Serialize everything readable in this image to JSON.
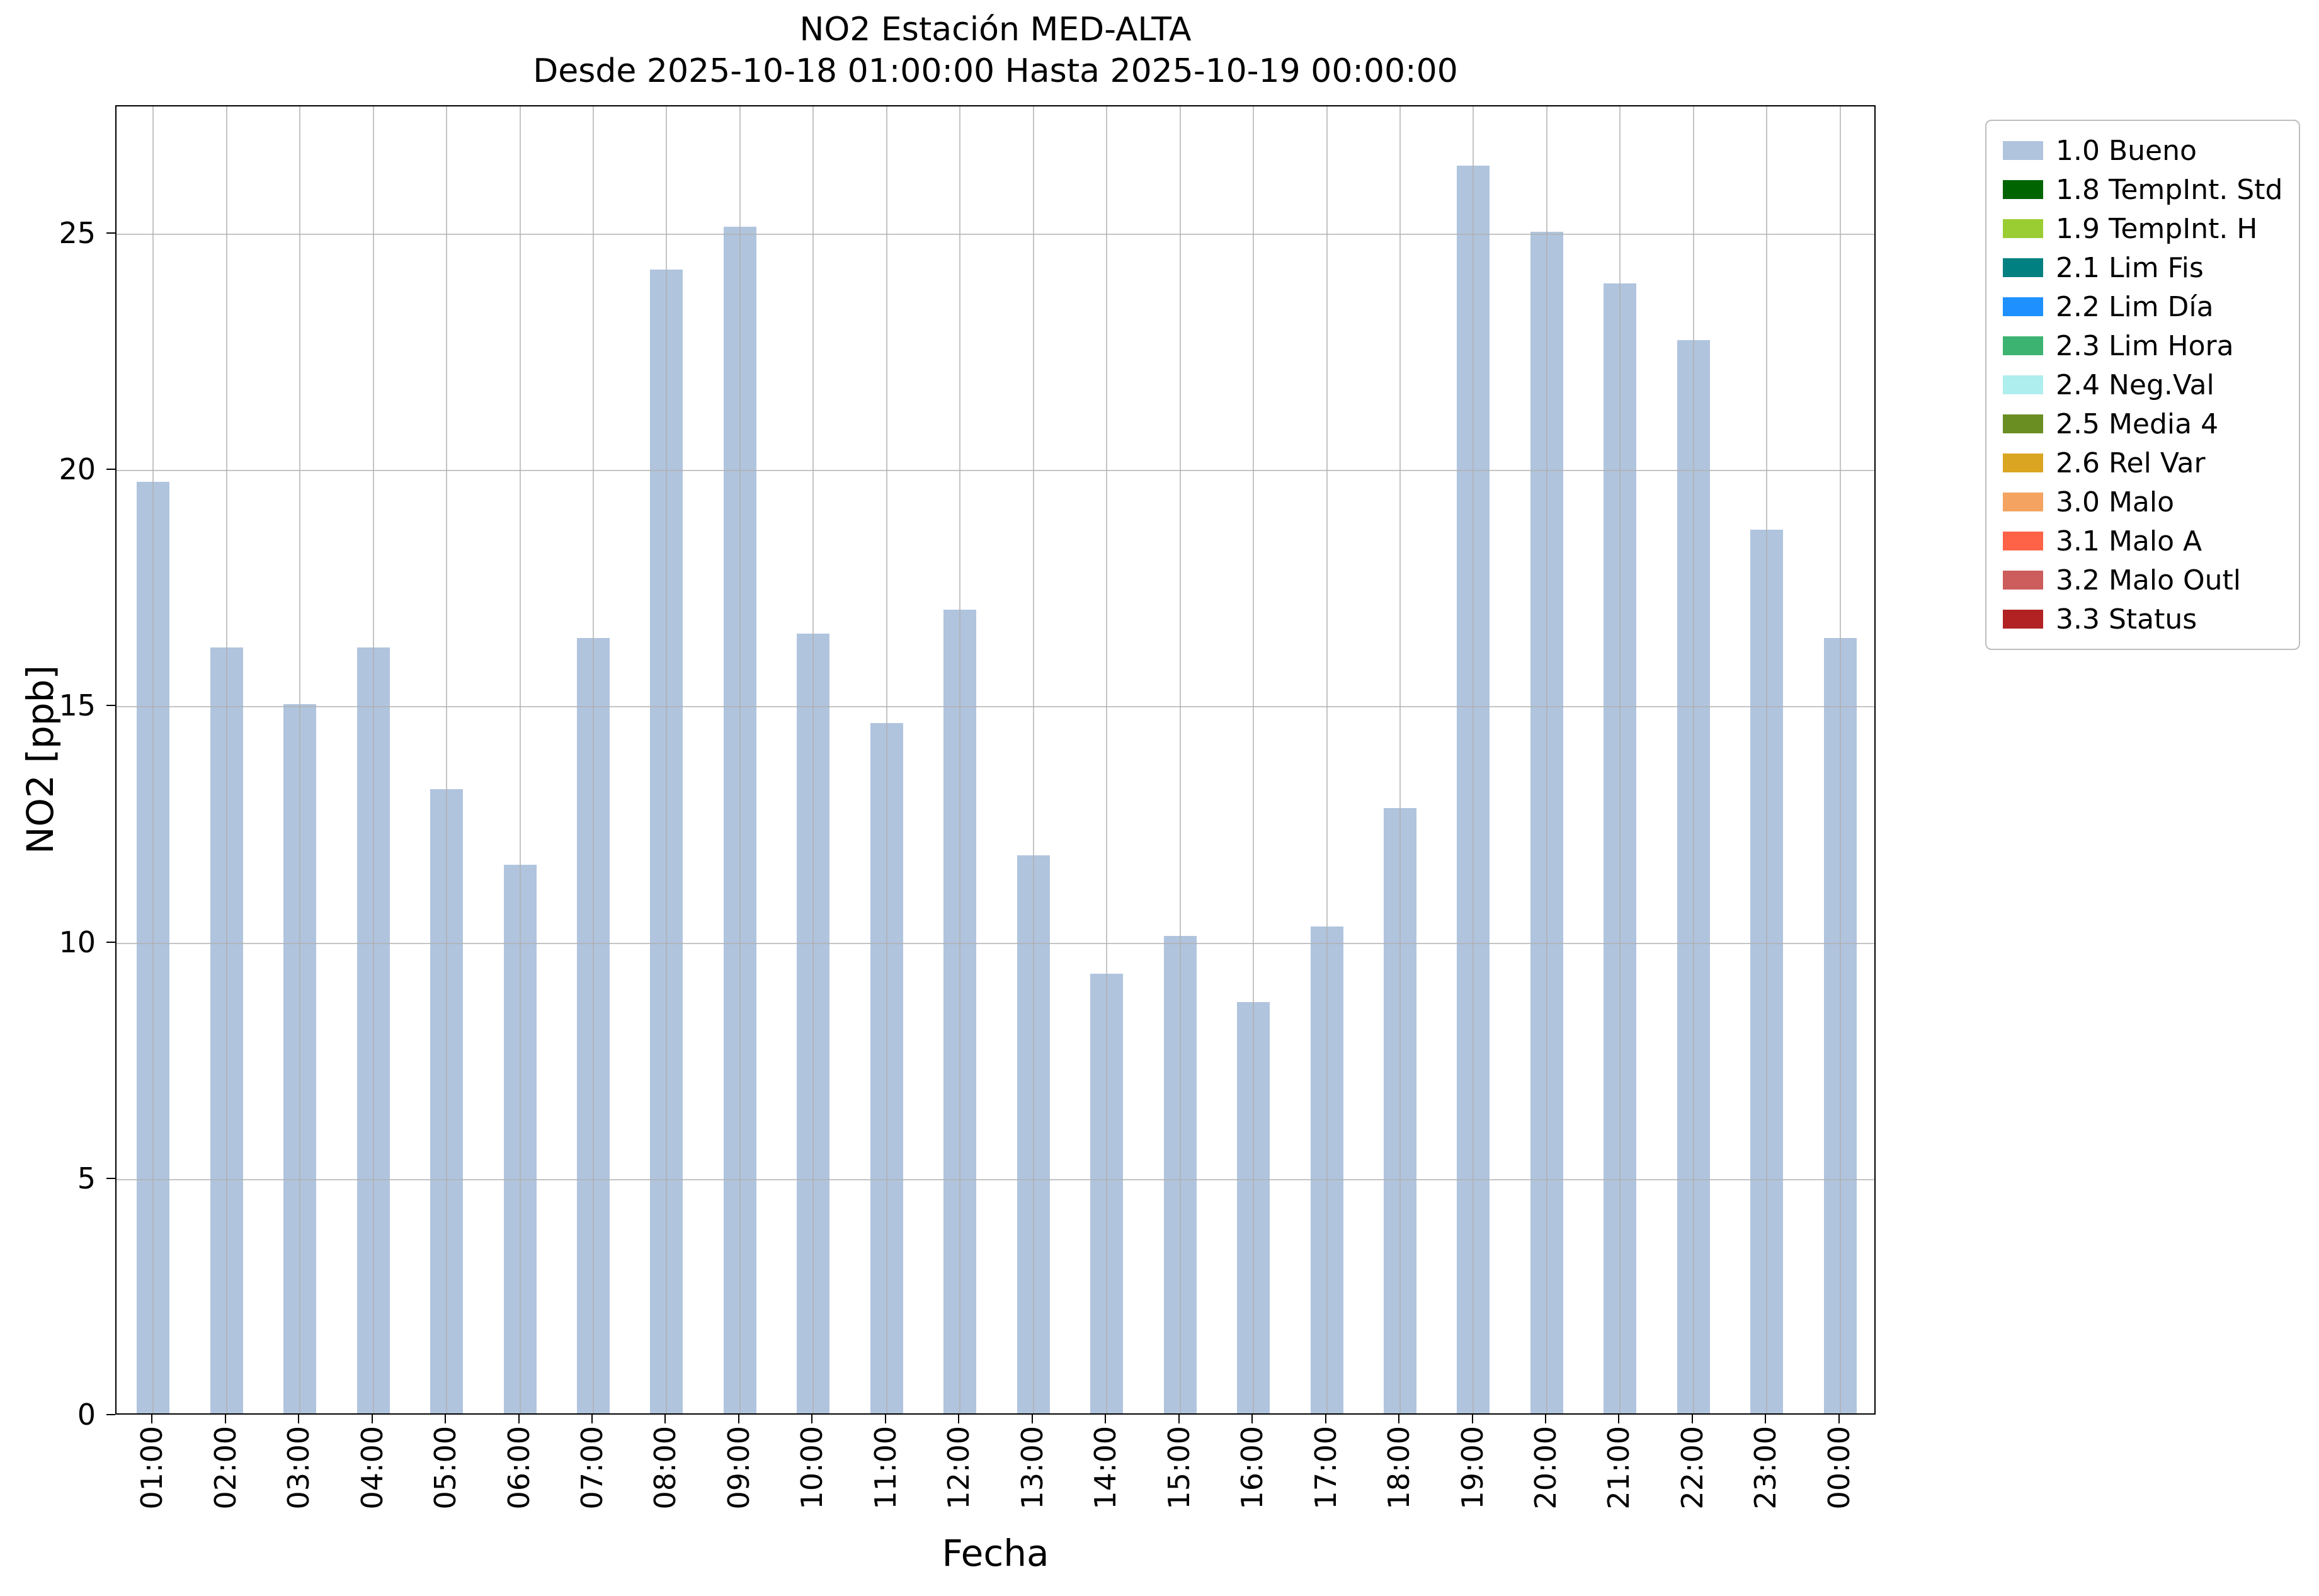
{
  "chart_data": {
    "type": "bar",
    "title": "NO2 Estación MED-ALTA",
    "subtitle": "Desde 2025-10-18 01:00:00 Hasta 2025-10-19 00:00:00",
    "xlabel": "Fecha",
    "ylabel": "NO2 [ppb]",
    "categories": [
      "01:00",
      "02:00",
      "03:00",
      "04:00",
      "05:00",
      "06:00",
      "07:00",
      "08:00",
      "09:00",
      "10:00",
      "11:00",
      "12:00",
      "13:00",
      "14:00",
      "15:00",
      "16:00",
      "17:00",
      "18:00",
      "19:00",
      "20:00",
      "21:00",
      "22:00",
      "23:00",
      "00:00"
    ],
    "values": [
      19.7,
      16.2,
      15.0,
      16.2,
      13.2,
      11.6,
      16.4,
      24.2,
      25.1,
      16.5,
      14.6,
      17.0,
      11.8,
      9.3,
      10.1,
      8.7,
      10.3,
      12.8,
      26.4,
      25.0,
      23.9,
      22.7,
      18.7,
      16.4
    ],
    "ylim": [
      0,
      27.7
    ],
    "yticks": [
      0,
      5,
      10,
      15,
      20,
      25
    ],
    "grid": true,
    "bar_color": "#b0c4de",
    "legend_position": "outside-top-right",
    "legend": [
      {
        "label": "1.0 Bueno",
        "color": "#b0c4de"
      },
      {
        "label": "1.8 TempInt. Std",
        "color": "#006400"
      },
      {
        "label": "1.9 TempInt. H",
        "color": "#9acd32"
      },
      {
        "label": "2.1 Lim Fis",
        "color": "#008080"
      },
      {
        "label": "2.2 Lim Día",
        "color": "#1e90ff"
      },
      {
        "label": "2.3 Lim Hora",
        "color": "#3cb371"
      },
      {
        "label": "2.4 Neg.Val",
        "color": "#afeeee"
      },
      {
        "label": "2.5 Media 4",
        "color": "#6b8e23"
      },
      {
        "label": "2.6 Rel Var",
        "color": "#daa520"
      },
      {
        "label": "3.0 Malo",
        "color": "#f4a460"
      },
      {
        "label": "3.1 Malo A",
        "color": "#ff6347"
      },
      {
        "label": "3.2 Malo Outl",
        "color": "#cd5c5c"
      },
      {
        "label": "3.3 Status",
        "color": "#b22222"
      }
    ]
  }
}
